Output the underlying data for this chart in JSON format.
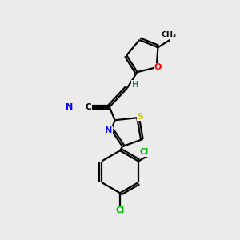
{
  "background_color": "#ebebeb",
  "bond_color": "#000000",
  "atom_colors": {
    "N": "#0000ff",
    "O": "#ff0000",
    "S": "#cccc00",
    "Cl": "#00bb00",
    "C": "#000000",
    "H": "#008888"
  },
  "lw": 1.6
}
